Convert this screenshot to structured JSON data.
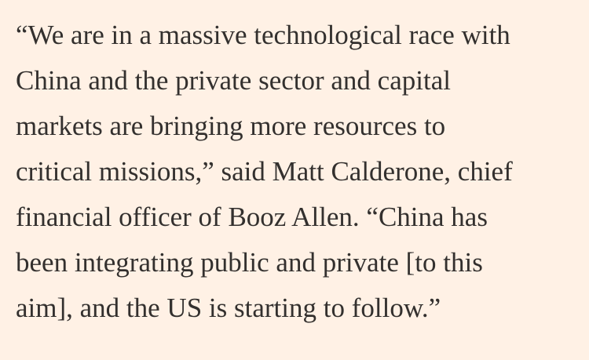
{
  "paragraph": {
    "lines": [
      "“We are in a massive technological race with",
      "China and the private sector and capital",
      "markets are bringing more resources to",
      "critical missions,” said Matt Calderone, chief",
      "financial officer of Booz Allen. “China has",
      "been integrating public and private [to this",
      "aim], and the US is starting to follow.”"
    ]
  }
}
